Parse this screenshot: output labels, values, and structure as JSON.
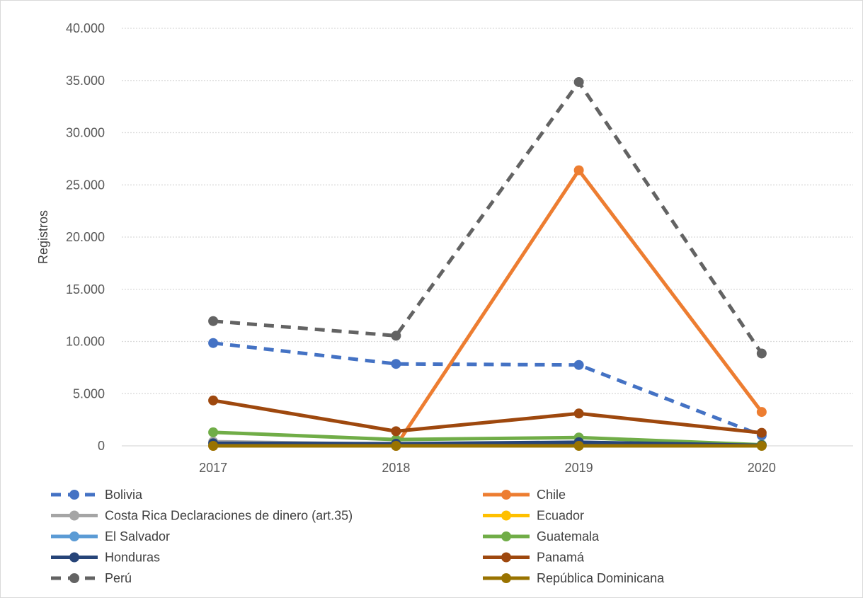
{
  "chart_data": {
    "type": "line",
    "ylabel": "Registros",
    "xlabel": "",
    "title": "",
    "ylim": [
      0,
      40000
    ],
    "y_ticks": [
      0,
      5000,
      10000,
      15000,
      20000,
      25000,
      30000,
      35000,
      40000
    ],
    "y_tick_labels": [
      "0",
      "5.000",
      "10.000",
      "15.000",
      "20.000",
      "25.000",
      "30.000",
      "35.000",
      "40.000"
    ],
    "categories": [
      "2017",
      "2018",
      "2019",
      "2020"
    ],
    "grid": "horizontal dotted",
    "legend_position": "bottom",
    "series": [
      {
        "name": "Bolivia",
        "values": [
          9850,
          7850,
          7750,
          1000
        ],
        "color": "#4472C4",
        "dashed": true
      },
      {
        "name": "Chile",
        "values": [
          0,
          0,
          26400,
          3250
        ],
        "color": "#ED7D31",
        "dashed": false
      },
      {
        "name": "Costa Rica Declaraciones de dinero (art.35)",
        "values": [
          400,
          150,
          150,
          100
        ],
        "color": "#A5A5A5",
        "dashed": false
      },
      {
        "name": "Ecuador",
        "values": [
          50,
          50,
          50,
          50
        ],
        "color": "#FFC000",
        "dashed": false
      },
      {
        "name": "El Salvador",
        "values": [
          100,
          100,
          100,
          100
        ],
        "color": "#5B9BD5",
        "dashed": false
      },
      {
        "name": "Guatemala",
        "values": [
          1300,
          600,
          800,
          100
        ],
        "color": "#70AD47",
        "dashed": false
      },
      {
        "name": "Honduras",
        "values": [
          250,
          200,
          350,
          50
        ],
        "color": "#264478",
        "dashed": false
      },
      {
        "name": "Panamá",
        "values": [
          4350,
          1400,
          3100,
          1250
        ],
        "color": "#9E480E",
        "dashed": false
      },
      {
        "name": "Perú",
        "values": [
          11950,
          10550,
          34850,
          8850
        ],
        "color": "#636363",
        "dashed": true
      },
      {
        "name": "República Dominicana",
        "values": [
          0,
          0,
          0,
          0
        ],
        "color": "#997300",
        "dashed": false
      }
    ]
  }
}
